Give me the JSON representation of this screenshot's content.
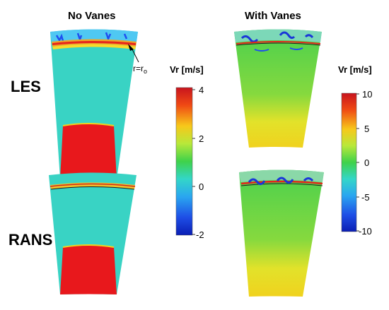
{
  "columns": {
    "left": "No Vanes",
    "right": "With Vanes"
  },
  "rows": {
    "top": "LES",
    "bottom": "RANS"
  },
  "annotation": {
    "label": "r=r",
    "subscript": "o"
  },
  "colorbar_left": {
    "title": "Vr  [m/s]",
    "ticks": [
      "4",
      "2",
      "0",
      "-2"
    ],
    "range": [
      -2,
      4
    ]
  },
  "colorbar_right": {
    "title": "Vr  [m/s]",
    "ticks": [
      "10",
      "5",
      "0",
      "-5",
      "-10"
    ],
    "range": [
      -10,
      10
    ]
  },
  "colors": {
    "jet_dark_blue": "#0a22c8",
    "jet_cyan": "#33d6d9",
    "jet_green": "#3fd24a",
    "jet_yellow": "#f2e61e",
    "jet_red": "#e8181c"
  }
}
